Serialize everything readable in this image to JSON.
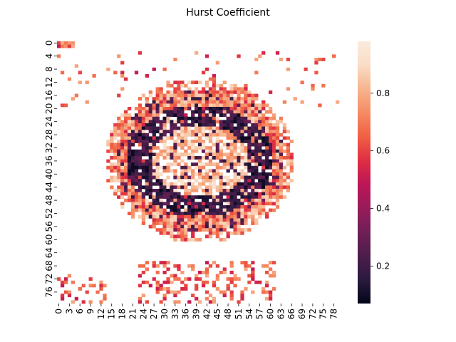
{
  "chart_data": {
    "type": "heatmap",
    "title": "Hurst Coefficient",
    "xlabel": "",
    "ylabel": "",
    "rows": 80,
    "cols": 80,
    "x_ticks": [
      "0",
      "3",
      "6",
      "9",
      "12",
      "15",
      "18",
      "21",
      "24",
      "27",
      "30",
      "33",
      "36",
      "39",
      "42",
      "45",
      "48",
      "51",
      "54",
      "57",
      "60",
      "63",
      "66",
      "69",
      "72",
      "75",
      "78"
    ],
    "y_ticks": [
      "0",
      "4",
      "8",
      "12",
      "16",
      "20",
      "24",
      "28",
      "32",
      "36",
      "40",
      "44",
      "48",
      "52",
      "56",
      "60",
      "64",
      "68",
      "72",
      "76"
    ],
    "colorbar": {
      "min": 0.07,
      "max": 0.98,
      "ticks": [
        "0.2",
        "0.4",
        "0.6",
        "0.8"
      ],
      "tick_values": [
        0.2,
        0.4,
        0.6,
        0.8
      ],
      "colormap": "rocket",
      "colors": [
        "#03051a",
        "#2b1a3f",
        "#4c1d4b",
        "#701f57",
        "#971c5b",
        "#bc1656",
        "#de2e44",
        "#f06043",
        "#f58b63",
        "#f6b48e",
        "#fadcc6",
        "#faebdd"
      ]
    },
    "nan_color": "#ffffff",
    "structure": {
      "description_values": {
        "core_value": 0.85,
        "dark_ring_value": 0.15,
        "outer_ring_value": 0.62,
        "rim_value": 0.72,
        "missing": "NaN"
      },
      "center": [
        40,
        36
      ],
      "core_radius": [
        14,
        11
      ],
      "dark_ring_radius": [
        21,
        17
      ],
      "outer_ring_radius": [
        24,
        22
      ],
      "rim_radius": [
        27,
        25
      ]
    }
  }
}
